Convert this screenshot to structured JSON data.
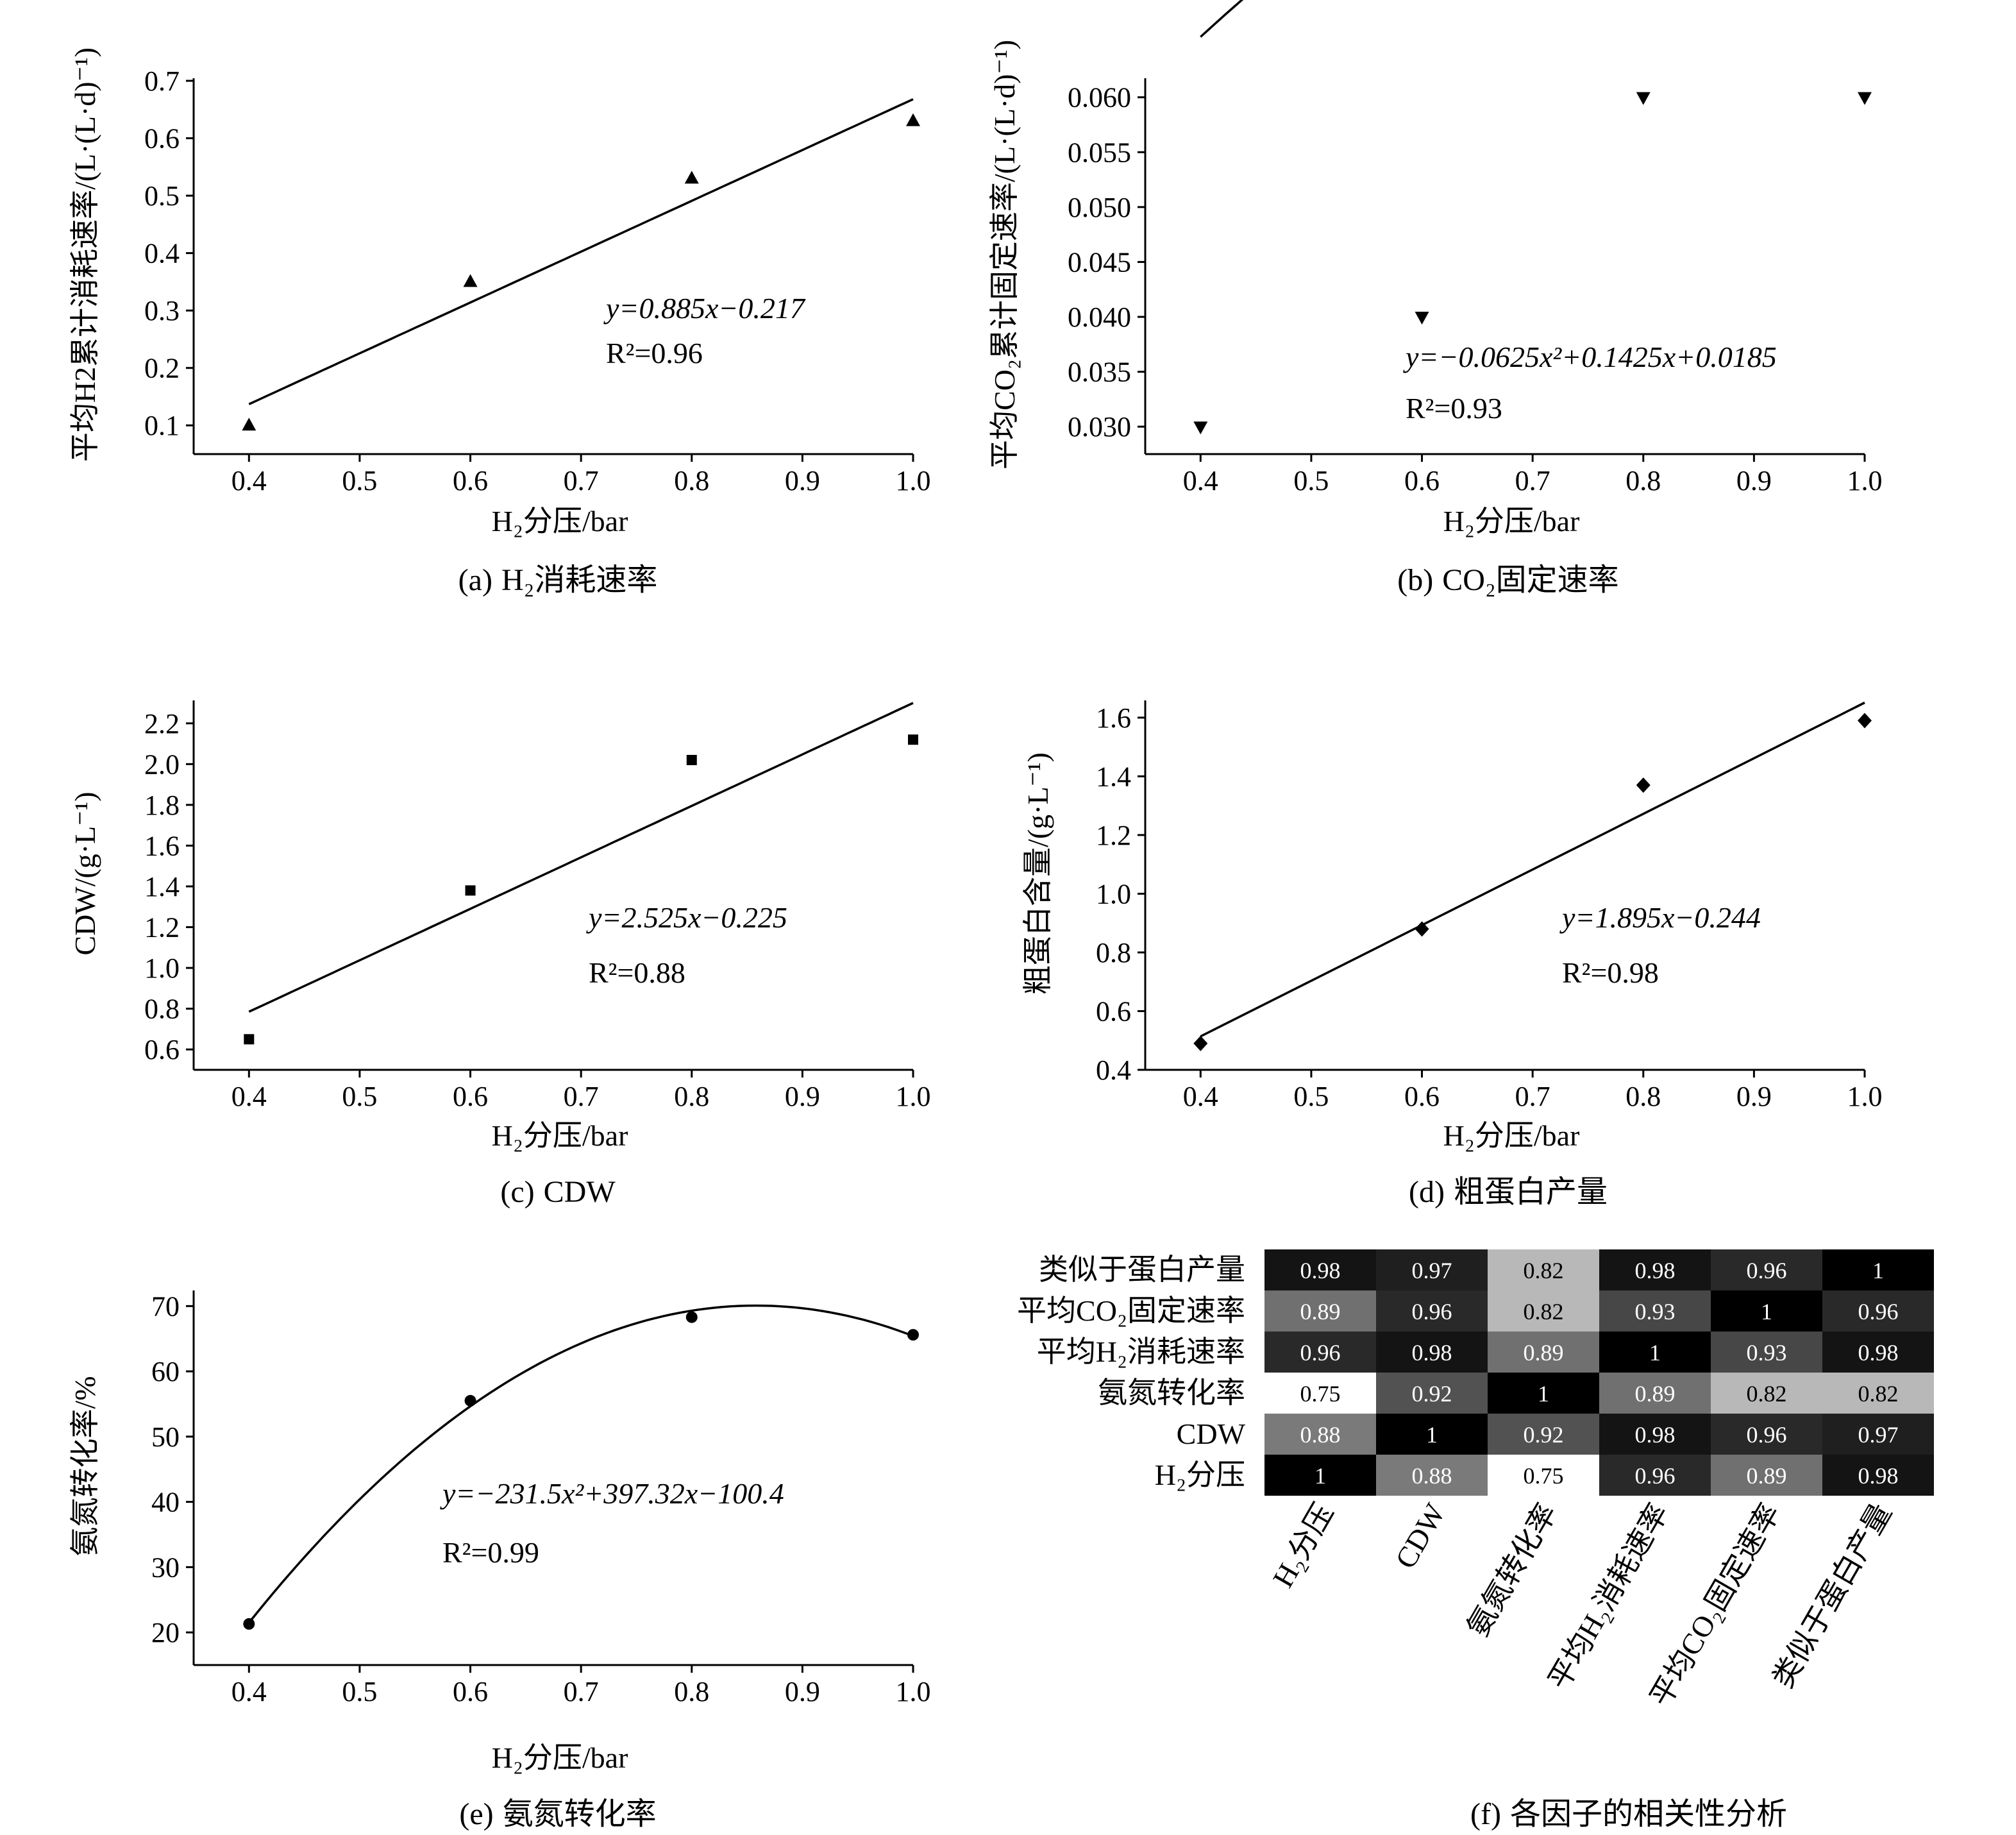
{
  "chart_data": [
    {
      "id": "a",
      "type": "scatter",
      "caption_prefix": "(a)",
      "caption_text": "H₂消耗速率",
      "xlabel": "H₂分压/bar",
      "ylabel": "平均H2累计消耗速率/(L·(L·d)⁻¹)",
      "xlim": [
        0.35,
        1.0
      ],
      "ylim": [
        0.05,
        0.7
      ],
      "xticks": [
        "0.4",
        "0.5",
        "0.6",
        "0.7",
        "0.8",
        "0.9",
        "1.0"
      ],
      "yticks": [
        "0.1",
        "0.2",
        "0.3",
        "0.4",
        "0.5",
        "0.6",
        "0.7"
      ],
      "marker": "triangle-up",
      "series": [
        {
          "x": [
            0.4,
            0.6,
            0.8,
            1.0
          ],
          "y": [
            0.1,
            0.35,
            0.53,
            0.63
          ]
        }
      ],
      "fit": {
        "kind": "linear",
        "coef": [
          0.885,
          -0.217
        ],
        "range": [
          0.4,
          1.0
        ]
      },
      "equation": "y=0.885x−0.217",
      "r2": "R²=0.96"
    },
    {
      "id": "b",
      "type": "scatter",
      "caption_prefix": "(b)",
      "caption_text": "CO₂固定速率",
      "xlabel": "H₂分压/bar",
      "ylabel": "平均CO₂累计固定速率/(L·(L·d)⁻¹)",
      "xlim": [
        0.35,
        1.0
      ],
      "ylim": [
        0.0275,
        0.0615
      ],
      "xticks": [
        "0.4",
        "0.5",
        "0.6",
        "0.7",
        "0.8",
        "0.9",
        "1.0"
      ],
      "yticks": [
        "0.030",
        "0.035",
        "0.040",
        "0.045",
        "0.050",
        "0.055",
        "0.060"
      ],
      "marker": "triangle-down",
      "series": [
        {
          "x": [
            0.4,
            0.6,
            0.8,
            1.0
          ],
          "y": [
            0.03,
            0.04,
            0.06,
            0.06
          ]
        }
      ],
      "fit": {
        "kind": "quadratic",
        "coef": [
          -0.0625,
          0.1425,
          0.0185
        ],
        "range": [
          0.4,
          1.0
        ]
      },
      "equation": "y=−0.0625x²+0.1425x+0.0185",
      "r2": "R²=0.93"
    },
    {
      "id": "c",
      "type": "scatter",
      "caption_prefix": "(c)",
      "caption_text": "CDW",
      "xlabel": "H₂分压/bar",
      "ylabel": "CDW/(g·L⁻¹)",
      "xlim": [
        0.35,
        1.0
      ],
      "ylim": [
        0.5,
        2.3
      ],
      "xticks": [
        "0.4",
        "0.5",
        "0.6",
        "0.7",
        "0.8",
        "0.9",
        "1.0"
      ],
      "yticks": [
        "0.6",
        "0.8",
        "1.0",
        "1.2",
        "1.4",
        "1.6",
        "1.8",
        "2.0",
        "2.2"
      ],
      "marker": "square",
      "series": [
        {
          "x": [
            0.4,
            0.6,
            0.8,
            1.0
          ],
          "y": [
            0.65,
            1.38,
            2.02,
            2.12
          ]
        }
      ],
      "fit": {
        "kind": "linear",
        "coef": [
          2.525,
          -0.225
        ],
        "range": [
          0.4,
          1.0
        ]
      },
      "equation": "y=2.525x−0.225",
      "r2": "R²=0.88"
    },
    {
      "id": "d",
      "type": "scatter",
      "caption_prefix": "(d)",
      "caption_text": "粗蛋白产量",
      "xlabel": "H₂分压/bar",
      "ylabel": "粗蛋白含量/(g·L⁻¹)",
      "xlim": [
        0.35,
        1.0
      ],
      "ylim": [
        0.4,
        1.65
      ],
      "xticks": [
        "0.4",
        "0.5",
        "0.6",
        "0.7",
        "0.8",
        "0.9",
        "1.0"
      ],
      "yticks": [
        "0.4",
        "0.6",
        "0.8",
        "1.0",
        "1.2",
        "1.4",
        "1.6"
      ],
      "marker": "diamond",
      "series": [
        {
          "x": [
            0.4,
            0.6,
            0.8,
            1.0
          ],
          "y": [
            0.49,
            0.88,
            1.37,
            1.59
          ]
        }
      ],
      "fit": {
        "kind": "linear",
        "coef": [
          1.895,
          -0.244
        ],
        "range": [
          0.4,
          1.0
        ]
      },
      "equation": "y=1.895x−0.244",
      "r2": "R²=0.98"
    },
    {
      "id": "e",
      "type": "scatter",
      "caption_prefix": "(e)",
      "caption_text": "氨氮转化率",
      "xlabel": "H₂分压/bar",
      "ylabel": "氨氮转化率/%",
      "xlim": [
        0.35,
        1.0
      ],
      "ylim": [
        15,
        72
      ],
      "xticks": [
        "0.4",
        "0.5",
        "0.6",
        "0.7",
        "0.8",
        "0.9",
        "1.0"
      ],
      "yticks": [
        "20",
        "30",
        "40",
        "50",
        "60",
        "70"
      ],
      "marker": "circle",
      "series": [
        {
          "x": [
            0.4,
            0.6,
            0.8,
            1.0
          ],
          "y": [
            21.3,
            55.5,
            68.3,
            65.6
          ]
        }
      ],
      "fit": {
        "kind": "quadratic",
        "coef": [
          -231.5,
          397.32,
          -100.4
        ],
        "range": [
          0.4,
          1.0
        ]
      },
      "equation": "y=−231.5x²+397.32x−100.4",
      "r2": "R²=0.99"
    },
    {
      "id": "f",
      "type": "heatmap",
      "caption_prefix": "(f)",
      "caption_text": "各因子的相关性分析",
      "row_labels": [
        "类似于蛋白产量",
        "平均CO₂固定速率",
        "平均H₂消耗速率",
        "氨氮转化率",
        "CDW",
        "H₂分压"
      ],
      "col_labels": [
        "H₂分压",
        "CDW",
        "氨氮转化率",
        "平均H₂消耗速率",
        "平均CO₂固定速率",
        "类似于蛋白产量"
      ],
      "values": [
        [
          0.98,
          0.97,
          0.82,
          0.98,
          0.96,
          1
        ],
        [
          0.89,
          0.96,
          0.82,
          0.93,
          1,
          0.96
        ],
        [
          0.96,
          0.98,
          0.89,
          1,
          0.93,
          0.98
        ],
        [
          0.75,
          0.92,
          1,
          0.89,
          0.82,
          0.82
        ],
        [
          0.88,
          1,
          0.92,
          0.98,
          0.96,
          0.97
        ],
        [
          1,
          0.88,
          0.75,
          0.96,
          0.89,
          0.98
        ]
      ],
      "display": [
        [
          "0.98",
          "0.97",
          "0.82",
          "0.98",
          "0.96",
          "1"
        ],
        [
          "0.89",
          "0.96",
          "0.82",
          "0.93",
          "1",
          "0.96"
        ],
        [
          "0.96",
          "0.98",
          "0.89",
          "1",
          "0.93",
          "0.98"
        ],
        [
          "0.75",
          "0.92",
          "1",
          "0.89",
          "0.82",
          "0.82"
        ],
        [
          "0.88",
          "1",
          "0.92",
          "0.98",
          "0.96",
          "0.97"
        ],
        [
          "1",
          "0.88",
          "0.75",
          "0.96",
          "0.89",
          "0.98"
        ]
      ],
      "colormap": {
        "low": "#ffffff",
        "high": "#000000"
      }
    }
  ]
}
